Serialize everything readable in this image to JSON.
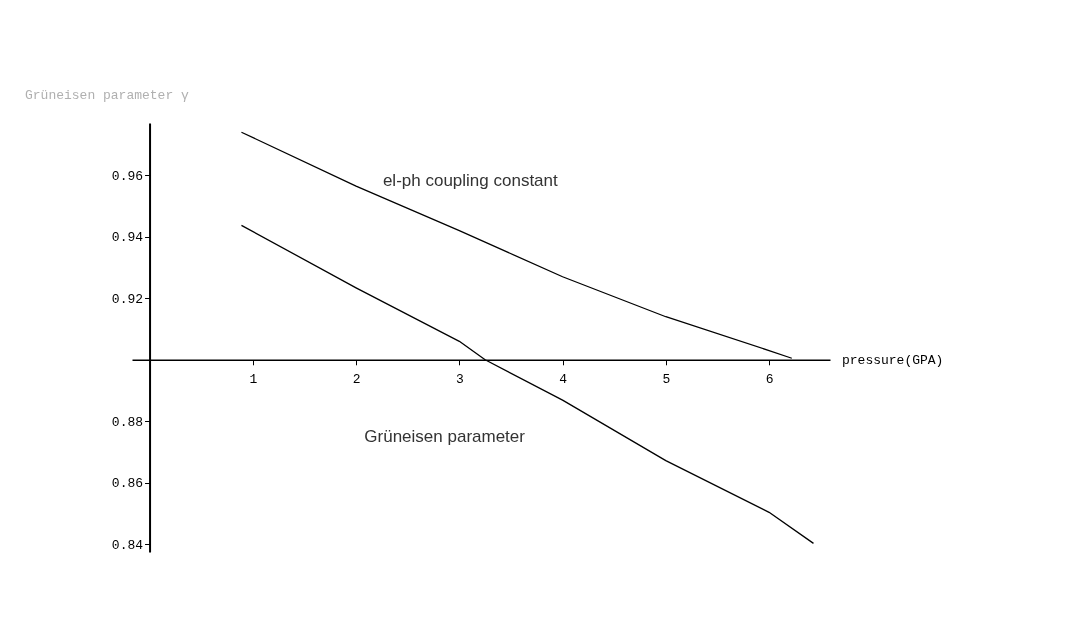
{
  "chart_data": {
    "type": "line",
    "title": "Grüneisen parameter γ",
    "xlabel": "pressure(GPA)",
    "series": [
      {
        "name": "el-ph coupling constant",
        "color": "#000000",
        "x": [
          0.89,
          2,
          3,
          4,
          5,
          6,
          6.22
        ],
        "values": [
          0.974,
          0.9565,
          0.942,
          0.927,
          0.914,
          0.903,
          0.9005
        ]
      },
      {
        "name": "Grüneisen parameter",
        "color": "#000000",
        "x": [
          0.89,
          2,
          3,
          3.25,
          4,
          5,
          6,
          6.43
        ],
        "values": [
          0.9437,
          0.9234,
          0.906,
          0.9,
          0.8869,
          0.8672,
          0.8504,
          0.8403
        ]
      }
    ],
    "xlim": [
      -0.17,
      6.59
    ],
    "ylim": [
      0.8375,
      0.977
    ],
    "xticks": [
      1,
      2,
      3,
      4,
      5,
      6
    ],
    "yticks": [
      0.84,
      0.86,
      0.88,
      {
        "value": 0.9,
        "label": null
      },
      0.92,
      0.94,
      0.96
    ],
    "grid": false,
    "legend": false,
    "marker": "none",
    "line_style": "solid"
  }
}
